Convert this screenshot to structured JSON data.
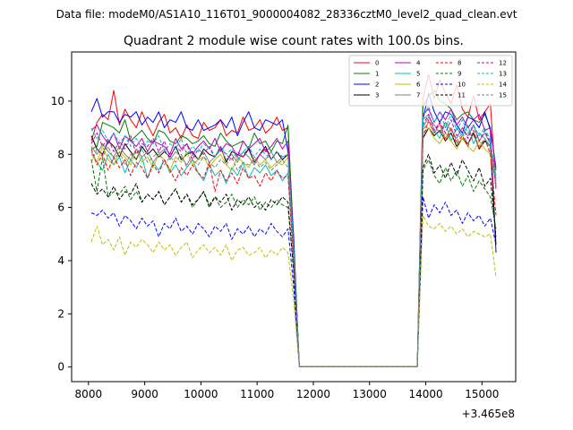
{
  "suptitle": "Data file: modeM0/AS1A10_116T01_9000004082_28336cztM0_level2_quad_clean.evt",
  "chart_data": {
    "type": "line",
    "title": "Quadrant 2 module wise count rates with 100.0s bins.",
    "xlabel": "",
    "ylabel": "",
    "x_offset_label": "+3.465e8",
    "xlim": [
      7700,
      15600
    ],
    "ylim": [
      -0.55,
      11.85
    ],
    "x_ticks": [
      8000,
      9000,
      10000,
      11000,
      12000,
      13000,
      14000,
      15000
    ],
    "x_tick_labels": [
      "8000",
      "9000",
      "10000",
      "11000",
      "12000",
      "13000",
      "14000",
      "15000"
    ],
    "y_ticks": [
      0,
      2,
      4,
      6,
      8,
      10
    ],
    "y_tick_labels": [
      "0",
      "2",
      "4",
      "6",
      "8",
      "10"
    ],
    "grid": false,
    "legend_position": "top-right",
    "x": [
      8050,
      8150,
      8250,
      8350,
      8450,
      8550,
      8650,
      8750,
      8850,
      8950,
      9050,
      9150,
      9250,
      9350,
      9450,
      9550,
      9650,
      9750,
      9850,
      9950,
      10050,
      10150,
      10250,
      10350,
      10450,
      10550,
      10650,
      10750,
      10850,
      10950,
      11050,
      11150,
      11250,
      11350,
      11450,
      11550,
      11650,
      11750,
      13850,
      13950,
      14050,
      14150,
      14250,
      14350,
      14450,
      14550,
      14650,
      14750,
      14850,
      14950,
      15050,
      15150,
      15250
    ],
    "series": [
      {
        "name": "0",
        "color": "#ff0000",
        "dash": "solid",
        "values": [
          8.5,
          9.2,
          9.5,
          9.3,
          10.4,
          9.1,
          9.7,
          9.3,
          9.0,
          9.6,
          9.1,
          8.7,
          9.2,
          9.5,
          8.8,
          9.0,
          8.6,
          9.1,
          8.7,
          8.6,
          9.2,
          8.9,
          9.0,
          9.3,
          8.7,
          8.9,
          8.8,
          9.4,
          8.9,
          9.0,
          9.3,
          8.8,
          9.0,
          9.4,
          8.9,
          9.0,
          4.8,
          0.02,
          0.02,
          10.1,
          11.0,
          10.1,
          10.8,
          10.3,
          9.9,
          10.6,
          9.7,
          9.4,
          10.2,
          9.3,
          9.6,
          9.9,
          6.8
        ]
      },
      {
        "name": "1",
        "color": "#008000",
        "dash": "solid",
        "values": [
          8.2,
          8.3,
          9.2,
          9.1,
          9.0,
          8.8,
          9.3,
          8.5,
          8.7,
          8.9,
          8.6,
          8.4,
          8.9,
          8.8,
          8.5,
          8.4,
          8.7,
          8.6,
          8.4,
          8.5,
          8.7,
          8.4,
          8.3,
          8.8,
          8.5,
          8.3,
          8.4,
          8.5,
          8.2,
          8.8,
          8.4,
          8.5,
          8.1,
          8.5,
          8.4,
          9.1,
          4.6,
          0.02,
          0.02,
          9.8,
          10.2,
          10.4,
          10.0,
          9.9,
          9.7,
          9.3,
          9.5,
          9.6,
          9.3,
          9.2,
          9.5,
          9.0,
          7.5
        ]
      },
      {
        "name": "2",
        "color": "#0000ff",
        "dash": "solid",
        "values": [
          9.6,
          10.1,
          9.4,
          9.6,
          9.6,
          9.2,
          9.5,
          9.4,
          9.6,
          9.1,
          9.4,
          9.2,
          9.6,
          9.0,
          9.3,
          9.2,
          9.6,
          9.0,
          8.9,
          9.3,
          8.9,
          9.0,
          9.1,
          9.3,
          9.0,
          9.4,
          8.7,
          9.2,
          9.6,
          9.0,
          8.9,
          9.3,
          9.2,
          9.1,
          9.3,
          8.1,
          4.9,
          0.02,
          0.02,
          9.3,
          10.3,
          9.6,
          9.2,
          9.6,
          9.5,
          9.1,
          8.8,
          9.4,
          9.3,
          9.0,
          9.6,
          8.9,
          4.3
        ]
      },
      {
        "name": "3",
        "color": "#000000",
        "dash": "solid",
        "values": [
          8.7,
          8.2,
          8.0,
          8.5,
          8.3,
          7.9,
          8.4,
          8.1,
          7.8,
          8.3,
          8.0,
          8.2,
          7.9,
          8.1,
          7.9,
          8.3,
          7.8,
          8.0,
          8.1,
          7.8,
          8.2,
          8.0,
          7.9,
          8.3,
          7.7,
          8.1,
          8.0,
          7.9,
          8.2,
          7.7,
          8.0,
          8.3,
          7.8,
          8.1,
          7.8,
          8.0,
          4.4,
          0.02,
          0.02,
          8.6,
          9.0,
          8.7,
          8.9,
          8.5,
          8.8,
          8.3,
          8.6,
          8.4,
          8.8,
          8.2,
          8.5,
          8.3,
          4.6
        ]
      },
      {
        "name": "4",
        "color": "#bf00bf",
        "dash": "solid",
        "values": [
          8.9,
          9.1,
          8.7,
          8.4,
          8.8,
          8.2,
          8.7,
          8.5,
          8.3,
          8.6,
          8.1,
          8.5,
          8.4,
          8.3,
          8.0,
          8.6,
          8.2,
          8.4,
          8.0,
          8.3,
          8.5,
          8.2,
          8.6,
          8.1,
          8.4,
          8.3,
          7.9,
          8.5,
          8.2,
          8.4,
          8.6,
          8.1,
          8.3,
          8.6,
          8.2,
          8.5,
          4.4,
          0.02,
          0.02,
          9.5,
          9.7,
          9.2,
          9.6,
          9.3,
          9.7,
          9.1,
          9.4,
          9.0,
          9.3,
          9.5,
          8.9,
          9.0,
          7.4
        ]
      },
      {
        "name": "5",
        "color": "#00bfbf",
        "dash": "solid",
        "values": [
          8.1,
          7.7,
          7.4,
          8.0,
          7.6,
          7.9,
          7.3,
          7.8,
          7.5,
          7.9,
          7.1,
          7.7,
          7.4,
          7.8,
          7.3,
          7.6,
          7.2,
          7.5,
          7.8,
          7.3,
          7.0,
          7.6,
          7.2,
          7.4,
          6.9,
          7.5,
          7.2,
          7.7,
          7.1,
          7.5,
          7.3,
          7.6,
          7.2,
          7.4,
          7.0,
          7.3,
          4.1,
          0.02,
          0.02,
          9.3,
          9.5,
          8.9,
          8.6,
          9.2,
          8.5,
          9.0,
          8.7,
          9.1,
          8.4,
          8.8,
          8.6,
          8.3,
          7.2
        ]
      },
      {
        "name": "6",
        "color": "#bfbf00",
        "dash": "solid",
        "values": [
          8.0,
          7.7,
          8.3,
          7.8,
          7.6,
          8.1,
          7.9,
          7.6,
          8.2,
          7.7,
          7.9,
          7.5,
          8.0,
          7.8,
          7.4,
          7.9,
          7.7,
          8.1,
          7.6,
          7.8,
          7.9,
          7.5,
          7.8,
          8.0,
          7.6,
          7.4,
          7.9,
          7.7,
          7.5,
          7.9,
          7.6,
          7.8,
          7.5,
          7.7,
          7.6,
          7.9,
          4.2,
          0.02,
          0.02,
          8.8,
          9.0,
          8.6,
          8.4,
          8.8,
          8.5,
          8.2,
          8.6,
          8.3,
          8.1,
          8.5,
          8.2,
          8.0,
          6.9
        ]
      },
      {
        "name": "7",
        "color": "#808080",
        "dash": "solid",
        "values": [
          8.3,
          8.0,
          8.4,
          8.1,
          7.9,
          8.3,
          8.0,
          7.8,
          8.2,
          7.9,
          8.1,
          7.7,
          8.0,
          8.2,
          7.8,
          8.1,
          7.9,
          7.6,
          8.0,
          7.8,
          8.1,
          7.7,
          7.9,
          8.2,
          7.8,
          8.0,
          7.7,
          8.1,
          7.9,
          7.6,
          8.0,
          7.8,
          8.1,
          7.7,
          7.9,
          8.0,
          4.3,
          0.02,
          0.02,
          9.0,
          9.4,
          9.1,
          8.8,
          9.2,
          8.9,
          8.6,
          9.0,
          8.7,
          9.1,
          8.5,
          8.8,
          8.4,
          7.0
        ]
      },
      {
        "name": "8",
        "color": "#ff0000",
        "dash": "dashed",
        "values": [
          8.2,
          7.6,
          8.0,
          7.4,
          7.9,
          7.5,
          7.8,
          7.2,
          7.7,
          7.5,
          7.1,
          7.6,
          7.3,
          7.8,
          7.4,
          7.0,
          7.5,
          7.2,
          7.6,
          7.3,
          7.1,
          7.7,
          6.6,
          7.4,
          7.0,
          7.3,
          6.9,
          7.5,
          7.1,
          7.2,
          6.8,
          7.3,
          7.0,
          7.4,
          7.1,
          7.2,
          3.9,
          0.02,
          0.02,
          8.6,
          9.3,
          8.8,
          9.2,
          8.5,
          9.0,
          8.4,
          8.7,
          8.3,
          8.9,
          8.2,
          8.6,
          8.0,
          5.7
        ]
      },
      {
        "name": "9",
        "color": "#008000",
        "dash": "dashed",
        "values": [
          7.8,
          6.6,
          7.9,
          6.4,
          6.6,
          6.5,
          6.8,
          6.3,
          6.6,
          6.2,
          6.5,
          6.3,
          6.6,
          6.1,
          6.4,
          6.7,
          6.2,
          6.5,
          6.0,
          6.3,
          6.6,
          6.1,
          6.4,
          6.0,
          6.2,
          6.5,
          6.0,
          6.3,
          6.1,
          6.4,
          5.9,
          6.2,
          6.0,
          6.3,
          6.1,
          6.0,
          3.6,
          0.02,
          0.02,
          7.4,
          7.8,
          7.2,
          6.9,
          7.5,
          7.0,
          7.4,
          6.8,
          7.2,
          6.6,
          7.0,
          6.7,
          6.4,
          5.2
        ]
      },
      {
        "name": "10",
        "color": "#0000ff",
        "dash": "dashed",
        "values": [
          5.8,
          5.7,
          5.9,
          5.6,
          5.8,
          5.3,
          5.7,
          5.5,
          5.2,
          5.6,
          5.3,
          5.5,
          4.9,
          5.4,
          5.2,
          5.6,
          5.1,
          5.3,
          5.0,
          5.4,
          5.2,
          4.9,
          5.3,
          5.1,
          5.4,
          4.8,
          5.2,
          5.0,
          5.3,
          4.9,
          5.2,
          5.0,
          5.4,
          5.1,
          4.9,
          5.2,
          3.0,
          0.02,
          0.02,
          6.4,
          5.6,
          6.1,
          5.8,
          6.2,
          5.7,
          5.9,
          5.4,
          5.8,
          5.5,
          5.7,
          5.3,
          5.6,
          4.6
        ]
      },
      {
        "name": "11",
        "color": "#000000",
        "dash": "dashed",
        "values": [
          6.9,
          6.5,
          6.7,
          6.4,
          6.8,
          6.3,
          6.6,
          6.5,
          6.9,
          6.2,
          6.5,
          6.3,
          6.6,
          6.1,
          6.4,
          6.7,
          6.2,
          6.5,
          6.1,
          6.3,
          6.6,
          6.0,
          6.4,
          6.2,
          6.5,
          5.9,
          6.3,
          6.1,
          6.4,
          6.0,
          6.2,
          5.9,
          6.3,
          6.1,
          6.4,
          6.2,
          3.6,
          0.02,
          0.02,
          7.5,
          8.0,
          7.3,
          7.6,
          7.1,
          7.7,
          7.2,
          7.8,
          7.4,
          7.0,
          7.5,
          6.8,
          7.1,
          4.9
        ]
      },
      {
        "name": "12",
        "color": "#bf00bf",
        "dash": "dashed",
        "values": [
          8.4,
          8.8,
          8.3,
          8.6,
          8.1,
          8.5,
          8.2,
          8.7,
          8.0,
          8.4,
          8.3,
          8.6,
          8.1,
          8.5,
          7.9,
          8.3,
          8.1,
          8.4,
          7.8,
          8.2,
          8.0,
          8.3,
          7.9,
          8.2,
          8.0,
          7.8,
          8.1,
          7.9,
          8.3,
          7.7,
          8.0,
          8.2,
          7.8,
          8.1,
          7.9,
          8.0,
          4.4,
          0.02,
          0.02,
          9.1,
          9.5,
          8.9,
          9.2,
          8.8,
          9.3,
          8.7,
          9.0,
          8.6,
          9.1,
          8.5,
          8.9,
          8.4,
          6.7
        ]
      },
      {
        "name": "13",
        "color": "#00bfbf",
        "dash": "dashed",
        "values": [
          9.0,
          8.6,
          8.9,
          8.5,
          8.8,
          8.4,
          8.7,
          8.3,
          8.6,
          8.2,
          8.5,
          8.4,
          8.7,
          8.1,
          8.4,
          8.2,
          8.6,
          8.0,
          8.3,
          8.1,
          8.4,
          8.2,
          7.9,
          8.3,
          8.0,
          8.2,
          7.8,
          8.1,
          8.3,
          7.9,
          8.2,
          8.0,
          7.8,
          8.1,
          7.9,
          8.0,
          4.5,
          0.02,
          0.02,
          9.4,
          9.8,
          9.2,
          9.6,
          9.0,
          9.5,
          8.9,
          9.3,
          8.8,
          9.1,
          8.7,
          9.0,
          8.5,
          7.1
        ]
      },
      {
        "name": "14",
        "color": "#bfbf00",
        "dash": "dashed",
        "values": [
          4.7,
          5.3,
          4.6,
          4.8,
          4.4,
          4.9,
          4.2,
          4.7,
          4.5,
          4.8,
          4.6,
          4.3,
          4.7,
          4.4,
          4.6,
          4.2,
          4.5,
          4.7,
          4.1,
          4.4,
          4.6,
          4.3,
          4.5,
          4.2,
          4.6,
          4.0,
          4.4,
          4.5,
          4.2,
          4.3,
          4.5,
          4.1,
          4.4,
          4.2,
          4.5,
          4.3,
          2.5,
          0.02,
          0.02,
          5.7,
          5.3,
          5.2,
          5.4,
          5.1,
          5.3,
          5.0,
          5.2,
          4.9,
          5.1,
          5.0,
          4.9,
          5.0,
          3.4
        ]
      },
      {
        "name": "15",
        "color": "#808080",
        "dash": "dashed",
        "values": [
          7.7,
          8.2,
          7.9,
          8.3,
          7.8,
          8.1,
          7.6,
          8.0,
          7.8,
          8.2,
          7.7,
          7.9,
          8.1,
          7.6,
          7.9,
          7.7,
          8.0,
          7.5,
          7.8,
          7.6,
          7.9,
          7.7,
          7.5,
          7.8,
          7.6,
          7.9,
          7.4,
          7.7,
          7.6,
          7.8,
          7.5,
          7.7,
          7.4,
          7.6,
          7.8,
          7.5,
          4.2,
          0.02,
          0.02,
          8.9,
          9.2,
          8.8,
          9.1,
          8.6,
          9.0,
          8.5,
          8.8,
          8.4,
          8.7,
          8.3,
          8.6,
          8.2,
          6.8
        ]
      }
    ]
  }
}
